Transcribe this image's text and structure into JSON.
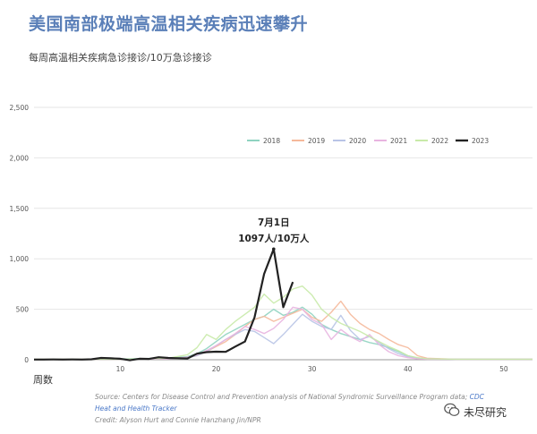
{
  "title": "美国南部极端高温相关疾病迅速攀升",
  "subtitle": "每周高温相关疾病急诊接诊/10万急诊接诊",
  "source": {
    "line1_text": "Source: Centers for Disease Control and Prevention analysis of National Syndromic Surveillance Program data; ",
    "line1_link": "CDC",
    "line2_link": "Heat and Health Tracker",
    "credit": "Credit: Alyson Hurt and Connie Hanzhang Jin/NPR"
  },
  "watermark": "未尽研究",
  "chart_data": {
    "type": "line",
    "xlabel": "周数",
    "ylabel": "",
    "xlim": [
      1,
      53
    ],
    "ylim": [
      0,
      2500
    ],
    "x_ticks": [
      10,
      20,
      30,
      40,
      50
    ],
    "y_ticks": [
      0,
      500,
      1000,
      1500,
      2000,
      2500
    ],
    "y_tick_labels": [
      "0",
      "500",
      "1,000",
      "1,500",
      "2,000",
      "2,500"
    ],
    "grid": true,
    "legend_position": "top-right",
    "annotation": {
      "x": 26,
      "y": 1097,
      "line1": "7月1日",
      "line2": "1097人/10万人"
    },
    "series": [
      {
        "name": "2018",
        "color": "#8fd3c0",
        "x": [
          1,
          5,
          10,
          15,
          17,
          18,
          19,
          20,
          21,
          22,
          23,
          24,
          25,
          26,
          27,
          28,
          29,
          30,
          31,
          32,
          33,
          34,
          35,
          36,
          37,
          38,
          39,
          40,
          41,
          42,
          45,
          50,
          53
        ],
        "values": [
          5,
          5,
          8,
          15,
          30,
          60,
          110,
          180,
          250,
          300,
          350,
          400,
          430,
          500,
          440,
          470,
          520,
          450,
          350,
          300,
          260,
          230,
          200,
          170,
          150,
          120,
          80,
          40,
          15,
          10,
          5,
          5,
          5
        ]
      },
      {
        "name": "2019",
        "color": "#f5b89a",
        "x": [
          1,
          5,
          10,
          15,
          17,
          18,
          19,
          20,
          21,
          22,
          23,
          24,
          25,
          26,
          27,
          28,
          29,
          30,
          31,
          32,
          33,
          34,
          35,
          36,
          37,
          38,
          39,
          40,
          41,
          42,
          45,
          50,
          53
        ],
        "values": [
          5,
          5,
          5,
          10,
          20,
          40,
          80,
          130,
          180,
          250,
          330,
          400,
          430,
          380,
          420,
          460,
          500,
          420,
          380,
          470,
          580,
          450,
          360,
          300,
          260,
          200,
          150,
          120,
          40,
          15,
          5,
          5,
          5
        ]
      },
      {
        "name": "2020",
        "color": "#b8c4e6",
        "x": [
          1,
          5,
          10,
          15,
          17,
          18,
          19,
          20,
          21,
          22,
          23,
          24,
          25,
          26,
          27,
          28,
          29,
          30,
          31,
          32,
          33,
          34,
          35,
          36,
          37,
          38,
          39,
          40,
          41,
          42,
          45,
          50,
          53
        ],
        "values": [
          5,
          5,
          5,
          10,
          20,
          40,
          80,
          140,
          200,
          250,
          300,
          280,
          220,
          160,
          250,
          350,
          450,
          380,
          330,
          300,
          440,
          290,
          200,
          230,
          170,
          110,
          60,
          30,
          15,
          10,
          5,
          5,
          5
        ]
      },
      {
        "name": "2021",
        "color": "#e8b4e0",
        "x": [
          1,
          5,
          10,
          15,
          17,
          18,
          19,
          20,
          21,
          22,
          23,
          24,
          25,
          26,
          27,
          28,
          29,
          30,
          31,
          32,
          33,
          34,
          35,
          36,
          37,
          38,
          39,
          40,
          41,
          42,
          45,
          50,
          53
        ],
        "values": [
          5,
          5,
          5,
          10,
          25,
          50,
          90,
          140,
          200,
          260,
          330,
          300,
          260,
          310,
          400,
          520,
          500,
          400,
          350,
          200,
          300,
          230,
          180,
          250,
          150,
          80,
          40,
          20,
          10,
          5,
          5,
          5,
          5
        ]
      },
      {
        "name": "2022",
        "color": "#c8eaa8",
        "x": [
          1,
          5,
          10,
          15,
          17,
          18,
          19,
          20,
          21,
          22,
          23,
          24,
          25,
          26,
          27,
          28,
          29,
          30,
          31,
          32,
          33,
          34,
          35,
          36,
          37,
          38,
          39,
          40,
          41,
          42,
          45,
          50,
          53
        ],
        "values": [
          5,
          5,
          5,
          15,
          50,
          120,
          250,
          200,
          300,
          380,
          450,
          520,
          650,
          560,
          620,
          700,
          730,
          640,
          500,
          420,
          360,
          320,
          280,
          230,
          180,
          130,
          90,
          40,
          20,
          10,
          5,
          5,
          5
        ]
      },
      {
        "name": "2023",
        "color": "#222222",
        "x": [
          1,
          2,
          3,
          4,
          5,
          6,
          7,
          8,
          9,
          10,
          11,
          12,
          13,
          14,
          15,
          16,
          17,
          18,
          19,
          20,
          21,
          22,
          23,
          24,
          25,
          26,
          27,
          28
        ],
        "values": [
          2,
          2,
          3,
          2,
          3,
          2,
          4,
          18,
          14,
          10,
          -5,
          10,
          8,
          25,
          18,
          15,
          12,
          60,
          75,
          80,
          78,
          130,
          180,
          420,
          850,
          1097,
          520,
          770
        ]
      }
    ]
  }
}
